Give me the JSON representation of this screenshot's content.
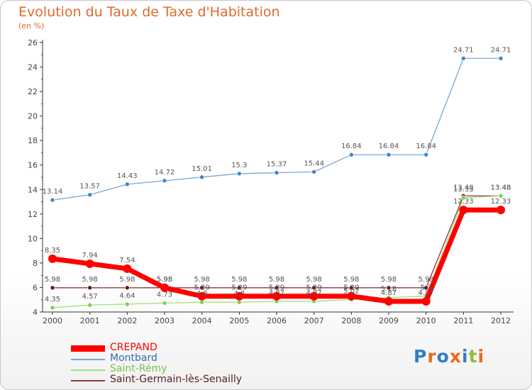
{
  "title": "Evolution du Taux de Taxe d'Habitation",
  "subtitle": "(en %)",
  "brand": {
    "text": "Proxiti",
    "letters": [
      {
        "ch": "P",
        "color": "#2f7fc2"
      },
      {
        "ch": "r",
        "color": "#e96a1c"
      },
      {
        "ch": "o",
        "color": "#2f7fc2"
      },
      {
        "ch": "x",
        "color": "#e96a1c"
      },
      {
        "ch": "i",
        "color": "#2f7fc2"
      },
      {
        "ch": "t",
        "color": "#8cbf3f"
      },
      {
        "ch": "i",
        "color": "#e96a1c"
      }
    ]
  },
  "chart_data": {
    "type": "line",
    "title": "Evolution du Taux de Taxe d'Habitation",
    "ylabel": "(en %)",
    "x": [
      "2000",
      "2001",
      "2002",
      "2003",
      "2004",
      "2005",
      "2006",
      "2007",
      "2008",
      "2009",
      "2010",
      "2011",
      "2012"
    ],
    "ylim": [
      4,
      26
    ],
    "yticks": [
      4,
      6,
      8,
      10,
      12,
      14,
      16,
      18,
      20,
      22,
      24,
      26
    ],
    "grid": false,
    "legend_position": "bottom-left",
    "series": [
      {
        "name": "CREPAND",
        "color": "#ff0000",
        "values": [
          8.35,
          7.94,
          7.54,
          5.98,
          5.29,
          5.29,
          5.29,
          5.29,
          5.29,
          4.87,
          4.87,
          12.33,
          12.33
        ],
        "labels": [
          "8.35",
          "7.94",
          "7.54",
          "5.98",
          "5.29",
          "5.29",
          "5.29",
          "5.29",
          "5.29",
          "4.87",
          "4.87",
          "12.33",
          "12.33"
        ]
      },
      {
        "name": "Montbard",
        "color": "#7aa7d6",
        "values": [
          13.14,
          13.57,
          14.43,
          14.72,
          15.01,
          15.3,
          15.37,
          15.44,
          16.84,
          16.84,
          16.84,
          24.71,
          24.71
        ],
        "labels": [
          "13.14",
          "13.57",
          "14.43",
          "14.72",
          "15.01",
          "15.3",
          "15.37",
          "15.44",
          "16.84",
          "16.84",
          "16.84",
          "24.71",
          "24.71"
        ]
      },
      {
        "name": "Saint-Rémy",
        "color": "#a3e07c",
        "values": [
          4.35,
          4.57,
          4.64,
          4.73,
          4.8,
          4.8,
          4.87,
          4.87,
          5.02,
          5.18,
          5.3,
          13.33,
          13.48
        ],
        "labels": [
          "4.35",
          "4.57",
          "4.64",
          "4.73",
          "4.8",
          "4.8",
          "4.87",
          "4.87",
          "5.02",
          "5.18",
          "5.3",
          "13.33",
          "13.48"
        ]
      },
      {
        "name": "Saint-Germain-lès-Senailly",
        "color": "#8b3a3a",
        "values": [
          5.98,
          5.98,
          5.98,
          5.98,
          5.98,
          5.98,
          5.98,
          5.98,
          5.98,
          5.98,
          5.98,
          13.48,
          13.48
        ],
        "labels": [
          "5.98",
          "5.98",
          "5.98",
          "5.98",
          "5.98",
          "5.98",
          "5.98",
          "5.98",
          "5.98",
          "5.98",
          "5.98",
          "13.48",
          "13.48"
        ]
      }
    ]
  }
}
